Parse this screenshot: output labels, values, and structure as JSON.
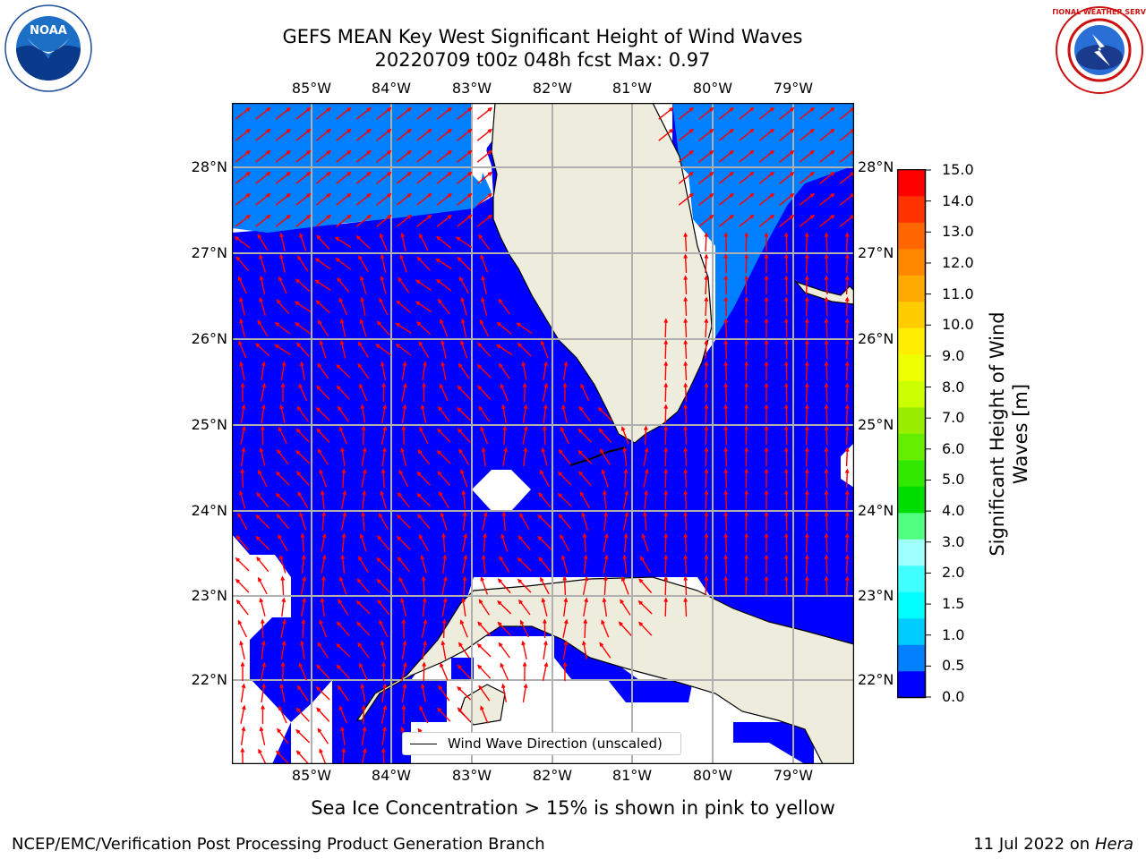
{
  "title": {
    "line1": "GEFS MEAN Key West Significant Height of Wind Waves",
    "line2": "20220709 t00z 048h fcst   Max: 0.97"
  },
  "logos": {
    "left": {
      "name": "noaa-logo",
      "text": "NOAA",
      "ring_text": "NATIONAL OCEANIC AND ATMOSPHERIC ADMINISTRATION · U.S. DEPARTMENT OF COMMERCE"
    },
    "right": {
      "name": "nws-logo",
      "ring_text": "NATIONAL WEATHER SERVICE"
    }
  },
  "map": {
    "x_ticks": [
      "85°W",
      "84°W",
      "83°W",
      "82°W",
      "81°W",
      "80°W",
      "79°W"
    ],
    "y_ticks": [
      "28°N",
      "27°N",
      "26°N",
      "25°N",
      "24°N",
      "23°N",
      "22°N"
    ],
    "lon_range": [
      -86.0,
      -78.35
    ],
    "lat_range": [
      21.0,
      28.75
    ],
    "legend": "Wind Wave Direction (unscaled)",
    "colors": {
      "land": "#eeecdc",
      "wave_0_0_5": "#0000ff",
      "wave_0_5_1_0": "#0080ff",
      "grid": "#b0b0b0",
      "arrow": "#ff0000",
      "coast": "#000000"
    },
    "grid": true
  },
  "colorbar": {
    "label": "Significant Height of Wind Waves [m]",
    "ticks": [
      "15.0",
      "14.0",
      "13.0",
      "12.0",
      "11.0",
      "10.0",
      "9.0",
      "8.0",
      "7.0",
      "6.0",
      "5.0",
      "4.0",
      "3.0",
      "2.0",
      "1.5",
      "1.0",
      "0.5",
      "0.0"
    ],
    "colors": [
      "#0000ff",
      "#0080ff",
      "#00ccff",
      "#00ffff",
      "#40ffff",
      "#a0ffff",
      "#50ff80",
      "#00dd00",
      "#33e800",
      "#66ee00",
      "#99ee00",
      "#ccff00",
      "#eeff00",
      "#ffee00",
      "#ffcc00",
      "#ffaa00",
      "#ff8800",
      "#ff6600",
      "#ff3300",
      "#ff0000"
    ]
  },
  "note": "Sea Ice Concentration > 15% is shown in pink to yellow",
  "footer": {
    "left": "NCEP/EMC/Verification Post Processing Product Generation Branch",
    "right_prefix": "11 Jul 2022 on ",
    "right_host": "Hera"
  }
}
